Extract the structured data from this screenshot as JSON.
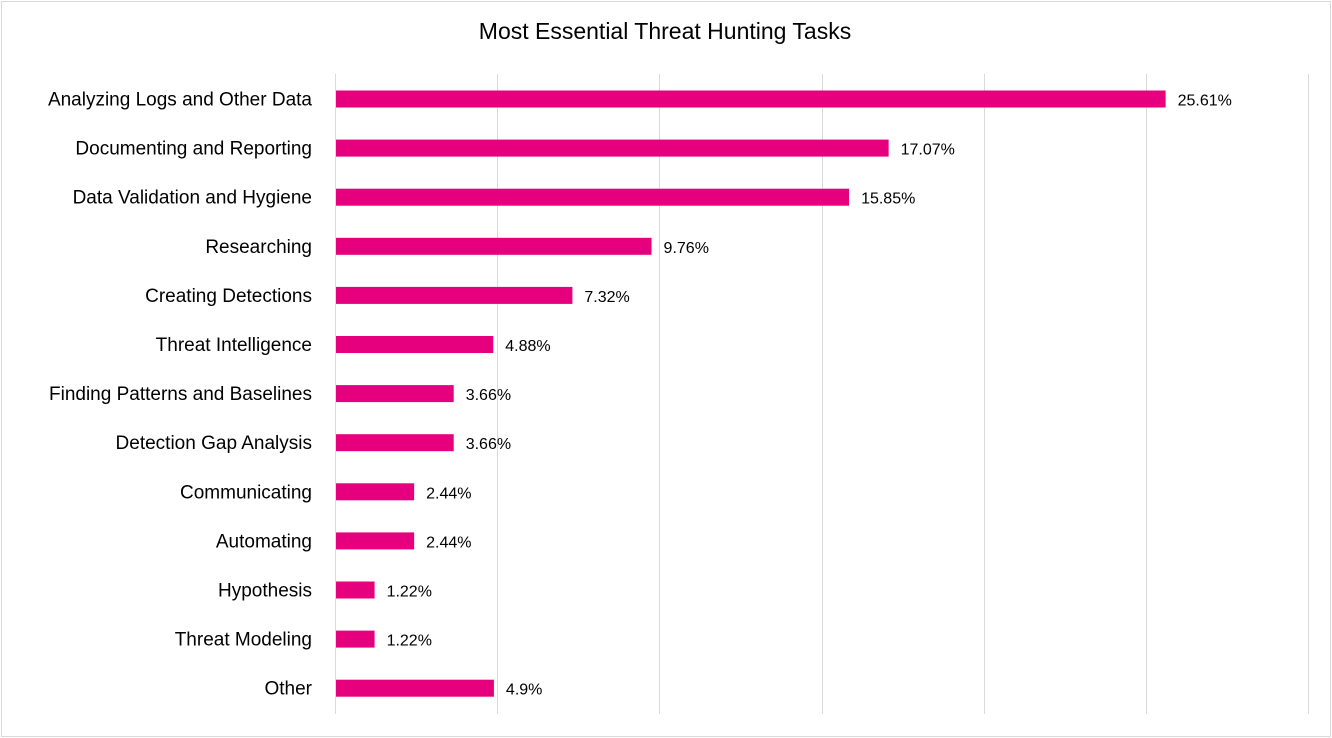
{
  "chart_data": {
    "type": "bar",
    "orientation": "horizontal",
    "title": "Most Essential Threat Hunting Tasks",
    "categories": [
      "Analyzing Logs and Other Data",
      "Documenting and Reporting",
      "Data Validation and Hygiene",
      "Researching",
      "Creating Detections",
      "Threat Intelligence",
      "Finding Patterns and Baselines",
      "Detection Gap Analysis",
      "Communicating",
      "Automating",
      "Hypothesis",
      "Threat Modeling",
      "Other"
    ],
    "values": [
      25.61,
      17.07,
      15.85,
      9.76,
      7.32,
      4.88,
      3.66,
      3.66,
      2.44,
      2.44,
      1.22,
      1.22,
      4.9
    ],
    "data_labels": [
      "25.61%",
      "17.07%",
      "15.85%",
      "9.76%",
      "7.32%",
      "4.88%",
      "3.66%",
      "3.66%",
      "2.44%",
      "2.44%",
      "1.22%",
      "1.22%",
      "4.9%"
    ],
    "xlim": [
      0,
      30
    ],
    "x_gridlines": [
      0,
      5,
      10,
      15,
      20,
      25,
      30
    ],
    "grid": true,
    "legend": "none",
    "bar_color": "#E6007E",
    "grid_color": "#d9d9d9"
  }
}
